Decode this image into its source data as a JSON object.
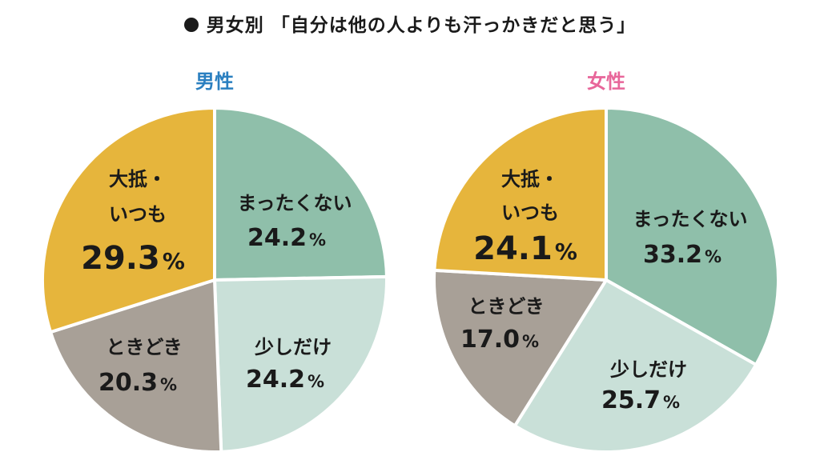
{
  "title": "男女別 「自分は他の人よりも汗っかきだと思う」",
  "colors": {
    "never": "#8fbfaa",
    "little": "#c9e0d8",
    "sometimes": "#a8a097",
    "always": "#e6b53c",
    "male_label": "#2a7fc0",
    "female_label": "#e8669a"
  },
  "chart_data": [
    {
      "type": "pie",
      "title": "男性",
      "slices": [
        {
          "label": "まったくない",
          "value": 24.2,
          "value_text": "24.2",
          "color": "#8fbfaa"
        },
        {
          "label": "少しだけ",
          "value": 24.2,
          "value_text": "24.2",
          "color": "#c9e0d8"
        },
        {
          "label": "ときどき",
          "value": 20.3,
          "value_text": "20.3",
          "color": "#a8a097"
        },
        {
          "label": "大抵・いつも",
          "value": 29.3,
          "value_text": "29.3",
          "color": "#e6b53c"
        }
      ]
    },
    {
      "type": "pie",
      "title": "女性",
      "slices": [
        {
          "label": "まったくない",
          "value": 33.2,
          "value_text": "33.2",
          "color": "#8fbfaa"
        },
        {
          "label": "少しだけ",
          "value": 25.7,
          "value_text": "25.7",
          "color": "#c9e0d8"
        },
        {
          "label": "ときどき",
          "value": 17.0,
          "value_text": "17.0",
          "color": "#a8a097"
        },
        {
          "label": "大抵・いつも",
          "value": 24.1,
          "value_text": "24.1",
          "color": "#e6b53c"
        }
      ]
    }
  ]
}
